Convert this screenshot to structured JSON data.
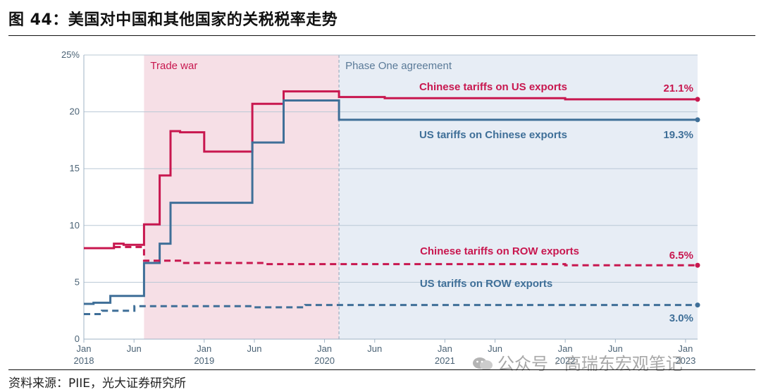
{
  "figure": {
    "title": "图 44：美国对中国和其他国家的关税税率走势",
    "source": "资料来源：PIIE，光大证券研究所",
    "watermark": "公众号 · 高瑞东宏观笔记"
  },
  "chart_data": {
    "type": "line",
    "ylim": [
      0,
      25
    ],
    "yticks": [
      0,
      5,
      10,
      15,
      20
    ],
    "ytick_top_label": "25%",
    "xlim": [
      2018.0,
      2023.1
    ],
    "xticks": [
      {
        "t": 2018.0,
        "label": "Jan",
        "year": "2018"
      },
      {
        "t": 2018.417,
        "label": "Jun",
        "year": ""
      },
      {
        "t": 2019.0,
        "label": "Jan",
        "year": "2019"
      },
      {
        "t": 2019.417,
        "label": "Jun",
        "year": ""
      },
      {
        "t": 2020.0,
        "label": "Jan",
        "year": "2020"
      },
      {
        "t": 2020.417,
        "label": "Jun",
        "year": ""
      },
      {
        "t": 2021.0,
        "label": "Jan",
        "year": "2021"
      },
      {
        "t": 2021.417,
        "label": "Jun",
        "year": ""
      },
      {
        "t": 2022.0,
        "label": "Jan",
        "year": "2022"
      },
      {
        "t": 2022.417,
        "label": "Jun",
        "year": ""
      },
      {
        "t": 2023.0,
        "label": "Jan",
        "year": "2023"
      }
    ],
    "regions": [
      {
        "name": "trade-war",
        "label": "Trade war",
        "from": 2018.5,
        "to": 2020.12,
        "color": "#f6dfe6"
      },
      {
        "name": "phase-one",
        "label": "Phase One agreement",
        "from": 2020.12,
        "to": 2023.1,
        "color": "#e7edf5"
      }
    ],
    "series": [
      {
        "name": "Chinese tariffs on US exports",
        "color": "#c8174f",
        "dashed": false,
        "end_label": "21.1%",
        "points": [
          [
            2018.0,
            8.0
          ],
          [
            2018.25,
            8.0
          ],
          [
            2018.25,
            8.4
          ],
          [
            2018.33,
            8.4
          ],
          [
            2018.33,
            8.3
          ],
          [
            2018.5,
            8.3
          ],
          [
            2018.5,
            10.1
          ],
          [
            2018.63,
            10.1
          ],
          [
            2018.63,
            14.4
          ],
          [
            2018.72,
            14.4
          ],
          [
            2018.72,
            18.3
          ],
          [
            2018.8,
            18.3
          ],
          [
            2018.8,
            18.2
          ],
          [
            2019.0,
            18.2
          ],
          [
            2019.0,
            16.5
          ],
          [
            2019.4,
            16.5
          ],
          [
            2019.4,
            20.7
          ],
          [
            2019.66,
            20.7
          ],
          [
            2019.66,
            21.8
          ],
          [
            2020.12,
            21.8
          ],
          [
            2020.12,
            21.3
          ],
          [
            2020.5,
            21.3
          ],
          [
            2020.5,
            21.2
          ],
          [
            2022.0,
            21.2
          ],
          [
            2022.0,
            21.1
          ],
          [
            2023.1,
            21.1
          ]
        ]
      },
      {
        "name": "US tariffs on Chinese exports",
        "color": "#3f6f98",
        "dashed": false,
        "end_label": "19.3%",
        "points": [
          [
            2018.0,
            3.1
          ],
          [
            2018.08,
            3.1
          ],
          [
            2018.08,
            3.2
          ],
          [
            2018.22,
            3.2
          ],
          [
            2018.22,
            3.8
          ],
          [
            2018.5,
            3.8
          ],
          [
            2018.5,
            6.7
          ],
          [
            2018.63,
            6.7
          ],
          [
            2018.63,
            8.4
          ],
          [
            2018.72,
            8.4
          ],
          [
            2018.72,
            12.0
          ],
          [
            2019.4,
            12.0
          ],
          [
            2019.4,
            17.3
          ],
          [
            2019.66,
            17.3
          ],
          [
            2019.66,
            21.0
          ],
          [
            2020.12,
            21.0
          ],
          [
            2020.12,
            19.3
          ],
          [
            2023.1,
            19.3
          ]
        ]
      },
      {
        "name": "Chinese tariffs on ROW exports",
        "color": "#c8174f",
        "dashed": true,
        "end_label": "6.5%",
        "points": [
          [
            2018.0,
            8.0
          ],
          [
            2018.25,
            8.0
          ],
          [
            2018.25,
            8.1
          ],
          [
            2018.5,
            8.1
          ],
          [
            2018.5,
            6.9
          ],
          [
            2018.8,
            6.9
          ],
          [
            2018.8,
            6.7
          ],
          [
            2019.5,
            6.7
          ],
          [
            2019.5,
            6.6
          ],
          [
            2022.0,
            6.6
          ],
          [
            2022.0,
            6.5
          ],
          [
            2023.1,
            6.5
          ]
        ]
      },
      {
        "name": "US tariffs on ROW exports",
        "color": "#3f6f98",
        "dashed": true,
        "end_label": "3.0%",
        "points": [
          [
            2018.0,
            2.2
          ],
          [
            2018.15,
            2.2
          ],
          [
            2018.15,
            2.5
          ],
          [
            2018.42,
            2.5
          ],
          [
            2018.42,
            2.9
          ],
          [
            2019.4,
            2.9
          ],
          [
            2019.4,
            2.8
          ],
          [
            2019.84,
            2.8
          ],
          [
            2019.84,
            3.0
          ],
          [
            2023.1,
            3.0
          ]
        ]
      }
    ]
  }
}
